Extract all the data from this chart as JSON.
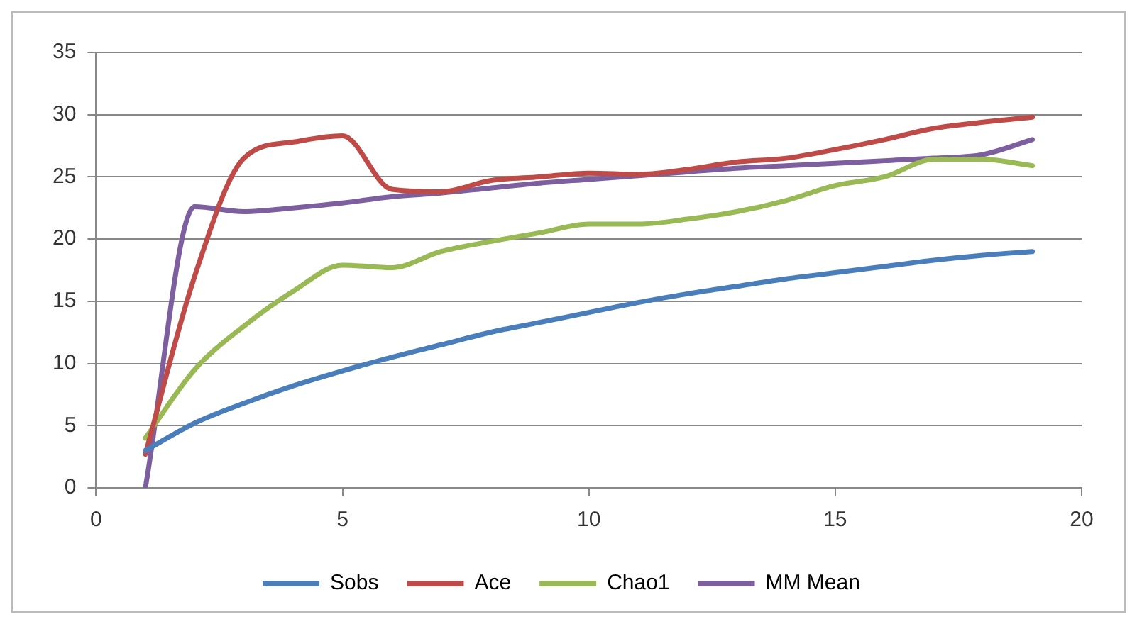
{
  "chart_data": {
    "type": "line",
    "x": [
      1,
      2,
      3,
      4,
      5,
      6,
      7,
      8,
      9,
      10,
      11,
      12,
      13,
      14,
      15,
      16,
      17,
      18,
      19
    ],
    "series": [
      {
        "name": "Sobs",
        "color": "#4a7ebb",
        "values": [
          3,
          5.2,
          6.8,
          8.2,
          9.4,
          10.5,
          11.5,
          12.5,
          13.3,
          14.1,
          14.9,
          15.6,
          16.2,
          16.8,
          17.3,
          17.8,
          18.3,
          18.7,
          19
        ]
      },
      {
        "name": "Ace",
        "color": "#be4b48",
        "values": [
          2.7,
          17,
          26.5,
          27.8,
          28.3,
          24,
          23.8,
          24.7,
          25,
          25.3,
          25.2,
          25.6,
          26.2,
          26.5,
          27.2,
          28,
          28.9,
          29.4,
          29.8
        ]
      },
      {
        "name": "Chao1",
        "color": "#98b954",
        "values": [
          4,
          9.5,
          13,
          15.8,
          17.9,
          17.7,
          19,
          19.8,
          20.5,
          21.2,
          21.2,
          21.6,
          22.2,
          23.1,
          24.3,
          25,
          26.4,
          26.4,
          25.9
        ]
      },
      {
        "name": "MM Mean",
        "color": "#7d5fa0",
        "values": [
          0,
          22.6,
          22.2,
          22.5,
          22.9,
          23.4,
          23.7,
          24.1,
          24.5,
          24.8,
          25.1,
          25.4,
          25.7,
          25.9,
          26.1,
          26.3,
          26.5,
          26.8,
          28
        ]
      }
    ],
    "xlim": [
      0,
      20
    ],
    "xticks": [
      0,
      5,
      10,
      15,
      20
    ],
    "ylim": [
      0,
      35
    ],
    "yticks": [
      0,
      5,
      10,
      15,
      20,
      25,
      30,
      35
    ],
    "grid": "y",
    "legend": "bottom",
    "marker": "none",
    "line_style": "solid"
  }
}
